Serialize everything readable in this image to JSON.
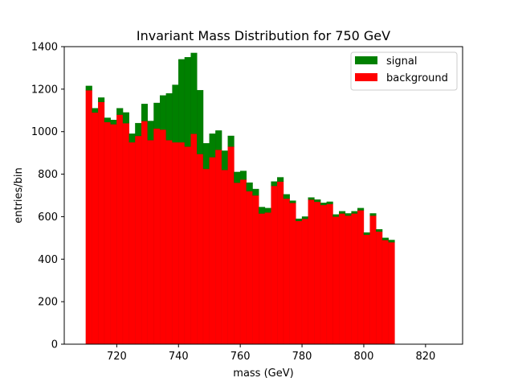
{
  "chart_data": {
    "type": "bar",
    "stacked": true,
    "title": "Invariant Mass Distribution for 750 GeV",
    "xlabel": "mass (GeV)",
    "ylabel": "entries/bin",
    "xlim": [
      703,
      832
    ],
    "ylim": [
      0,
      1400
    ],
    "x_ticks": [
      720,
      740,
      760,
      780,
      800,
      820
    ],
    "y_ticks": [
      0,
      200,
      400,
      600,
      800,
      1000,
      1200,
      1400
    ],
    "bin_edges_start": 710,
    "bin_width": 2,
    "legend_position": "top-right",
    "series": [
      {
        "name": "signal",
        "color": "#008000",
        "values": [
          20,
          20,
          20,
          20,
          20,
          30,
          50,
          40,
          60,
          80,
          90,
          120,
          160,
          220,
          270,
          390,
          420,
          380,
          300,
          120,
          110,
          90,
          90,
          50,
          50,
          40,
          40,
          30,
          30,
          20,
          20,
          20,
          20,
          10,
          10,
          10,
          10,
          10,
          10,
          10,
          10,
          10,
          10,
          10,
          10,
          10,
          10,
          10,
          10,
          10,
          10,
          10,
          10,
          10,
          10,
          10,
          10,
          10,
          10,
          10
        ]
      },
      {
        "name": "background",
        "color": "#ff0000",
        "values": [
          1195,
          1090,
          1140,
          1045,
          1035,
          1080,
          1040,
          950,
          980,
          1050,
          960,
          1015,
          1010,
          960,
          950,
          950,
          930,
          990,
          895,
          825,
          880,
          915,
          820,
          930,
          760,
          775,
          720,
          700,
          615,
          620,
          745,
          765,
          685,
          665,
          580,
          590,
          680,
          670,
          655,
          660,
          600,
          615,
          605,
          615,
          630,
          515,
          605,
          530,
          490,
          480,
          0,
          0,
          0,
          0,
          0,
          0,
          0,
          0,
          0,
          0
        ]
      }
    ]
  }
}
